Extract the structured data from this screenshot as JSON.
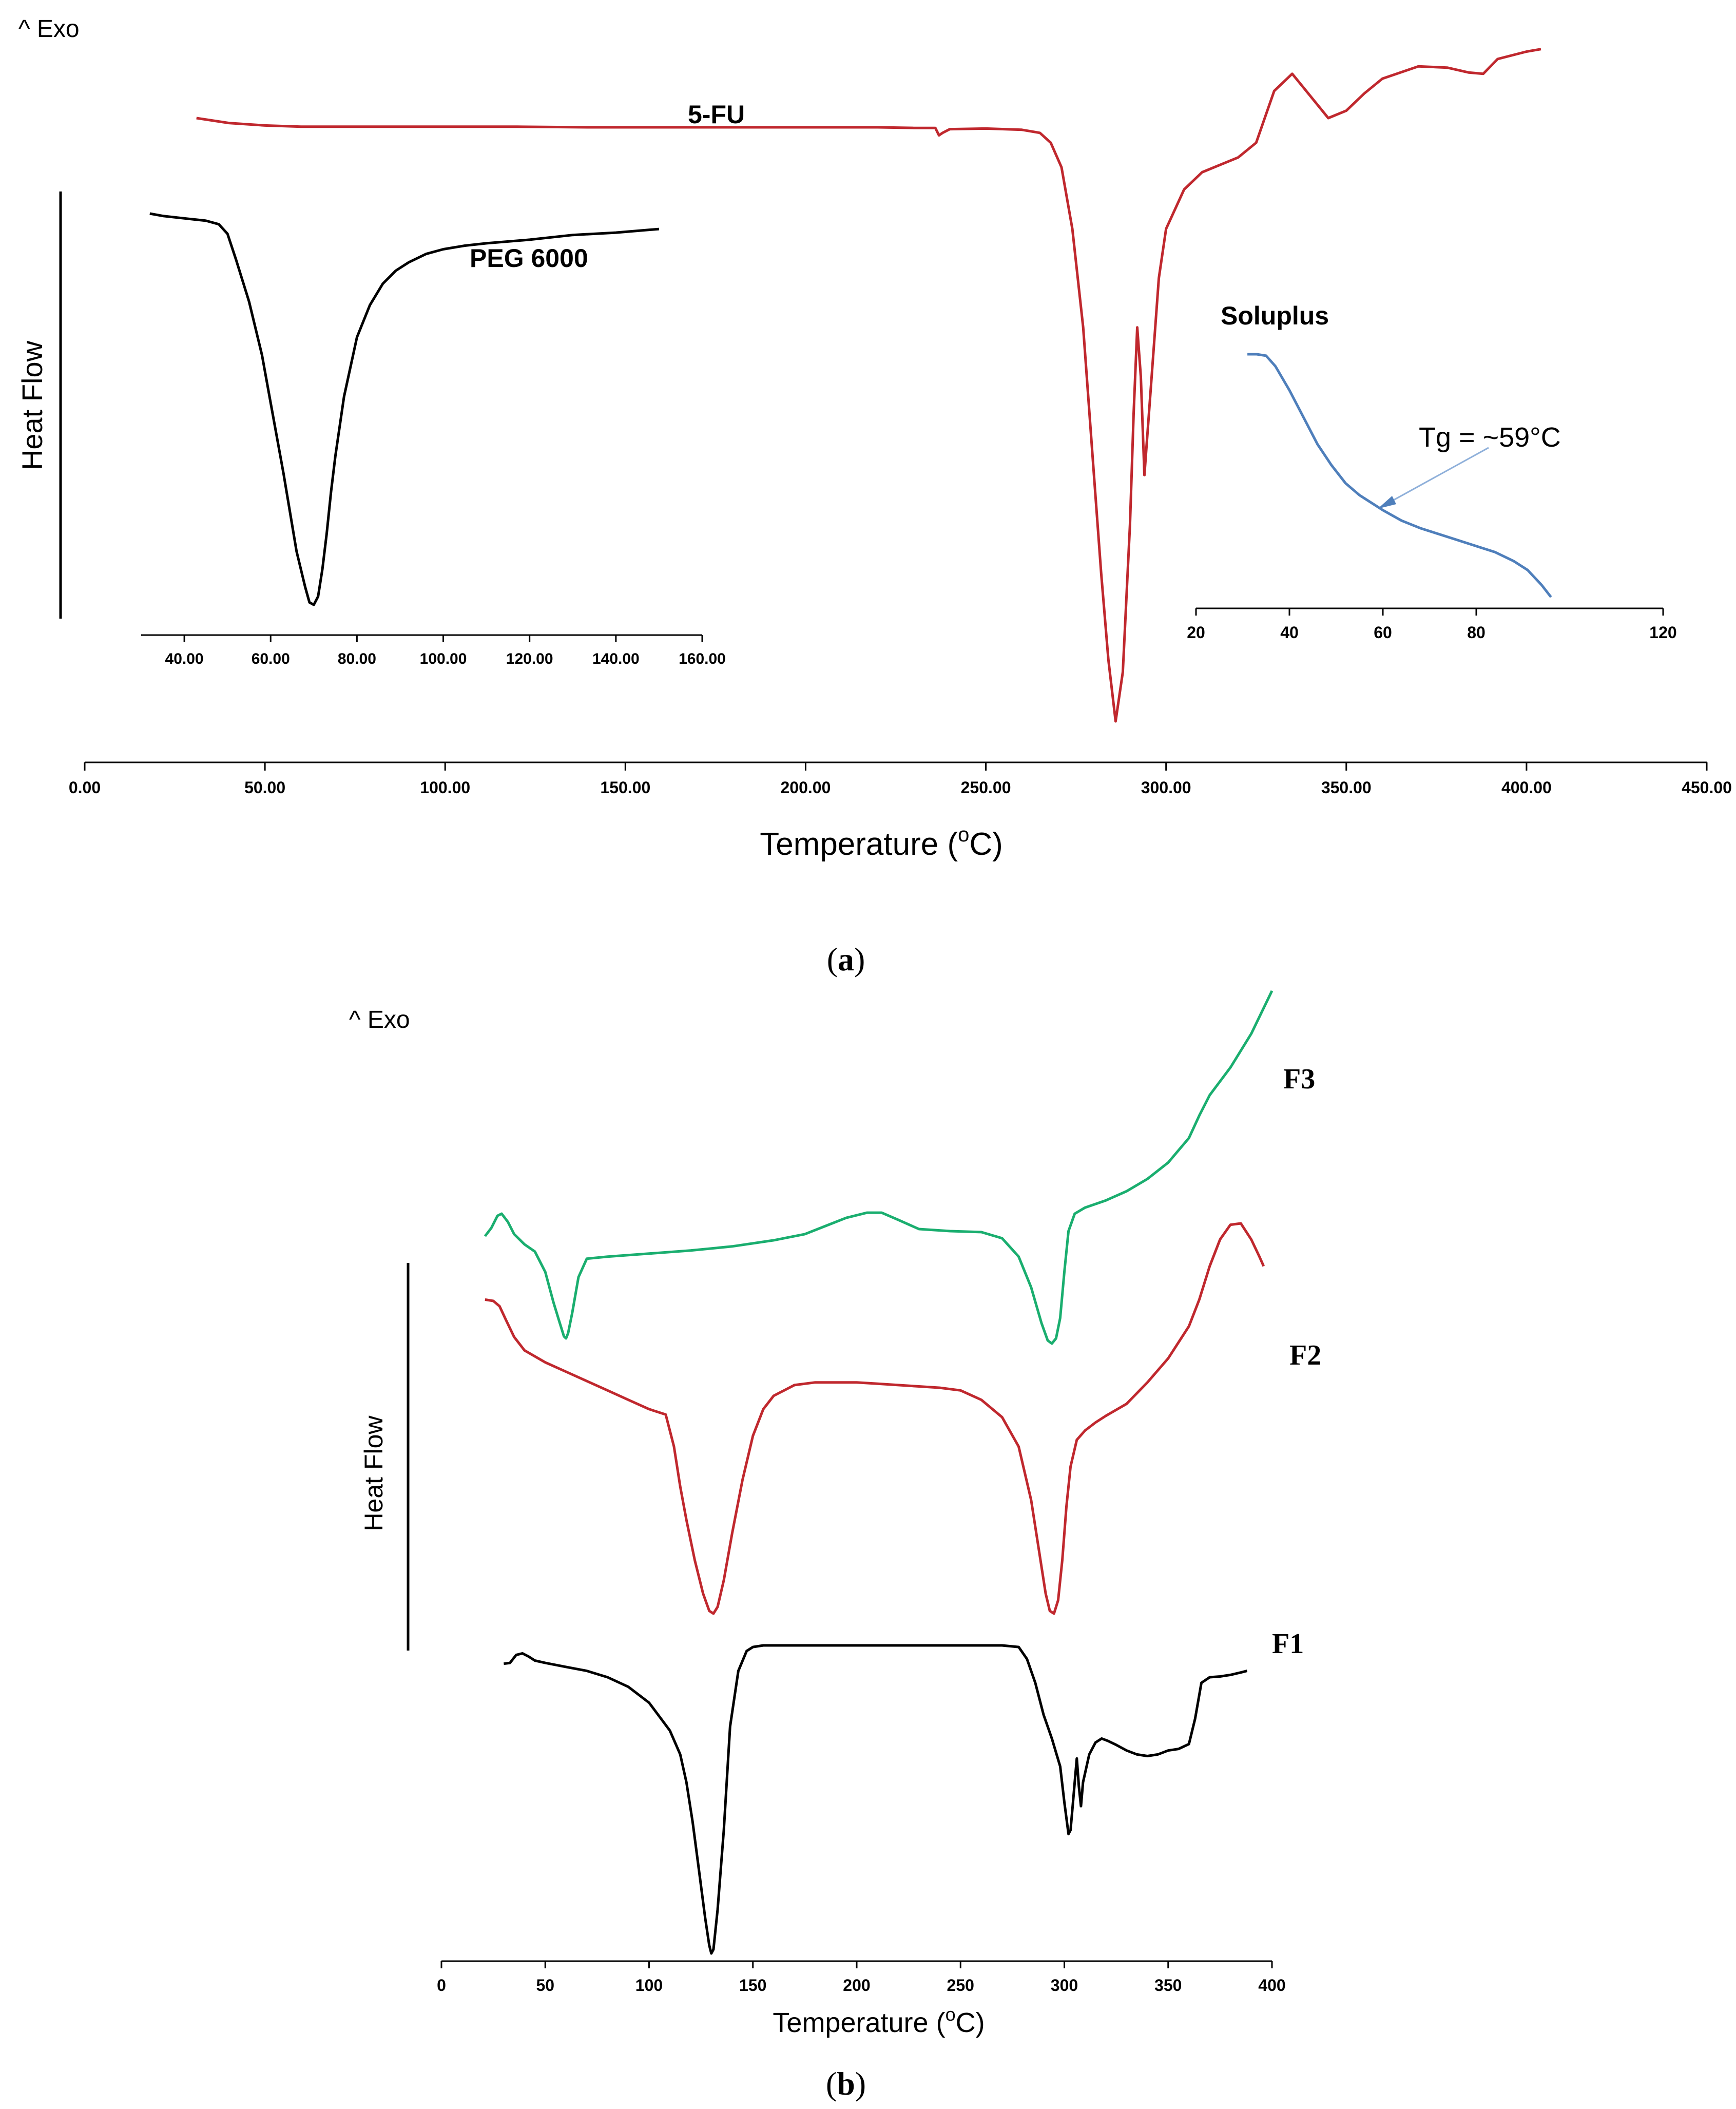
{
  "panel_a": {
    "exo_label": "^ Exo",
    "heat_flow_label": "Heat Flow",
    "caption": "a",
    "main_axis": {
      "xlabel_text": "Temperature (",
      "xlabel_sup": "o",
      "xlabel_unit": "C)",
      "xlim": [
        0,
        450
      ],
      "ticks": [
        "0.00",
        "50.00",
        "100.00",
        "150.00",
        "200.00",
        "250.00",
        "300.00",
        "350.00",
        "400.00",
        "450.00"
      ]
    },
    "peg_axis": {
      "xlim": [
        30,
        160
      ],
      "ticks": [
        "40.00",
        "60.00",
        "80.00",
        "100.00",
        "120.00",
        "140.00",
        "160.00"
      ]
    },
    "soluplus_axis": {
      "xlim": [
        20,
        120
      ],
      "ticks": [
        "20",
        "40",
        "60",
        "80",
        "120"
      ]
    },
    "annotation": "Tg = ~59°C"
  },
  "panel_b": {
    "exo_label": "^ Exo",
    "heat_flow_label": "Heat Flow",
    "caption": "b",
    "axis": {
      "xlabel_text": "Temperature (",
      "xlabel_sup": "o",
      "xlabel_unit": "C)",
      "xlim": [
        0,
        400
      ],
      "ticks": [
        "0",
        "50",
        "100",
        "150",
        "200",
        "250",
        "300",
        "350",
        "400"
      ]
    }
  },
  "chart_data": [
    {
      "type": "line",
      "title": "",
      "xlabel": "Temperature (°C)",
      "ylabel": "Heat Flow",
      "xlim": [
        0,
        450
      ],
      "series": [
        {
          "name": "5-FU",
          "color": "#c0282e",
          "x": [
            31,
            40,
            50,
            60,
            80,
            100,
            120,
            140,
            160,
            180,
            200,
            220,
            230,
            236,
            237,
            238,
            240,
            250,
            260,
            265,
            268,
            271,
            274,
            277,
            280,
            282,
            284,
            286,
            288,
            290,
            291,
            292,
            293,
            294,
            296,
            298,
            300,
            305,
            310,
            315,
            320,
            325,
            330,
            335,
            340,
            345,
            350,
            355,
            360,
            370,
            378,
            384,
            388,
            392,
            400,
            404
          ],
          "y": [
            -1.0,
            -1.4,
            -1.6,
            -1.7,
            -1.7,
            -1.7,
            -1.7,
            -1.75,
            -1.75,
            -1.75,
            -1.75,
            -1.75,
            -1.8,
            -1.8,
            -2.4,
            -2.2,
            -1.9,
            -1.85,
            -1.95,
            -2.2,
            -3.0,
            -5.0,
            -10.0,
            -18.0,
            -30.0,
            -38.0,
            -45.0,
            -50.0,
            -46.0,
            -34.0,
            -25.0,
            -18.0,
            -22.0,
            -30.0,
            -22.0,
            -14.0,
            -10.0,
            -6.8,
            -5.4,
            -4.8,
            -4.2,
            -3.0,
            1.2,
            2.6,
            0.8,
            -1.0,
            -0.4,
            1.0,
            2.2,
            3.2,
            3.1,
            2.7,
            2.6,
            3.8,
            4.4,
            4.6
          ]
        }
      ]
    },
    {
      "type": "line",
      "title": "PEG 6000",
      "xlabel": "",
      "ylabel": "",
      "xlim": [
        30,
        160
      ],
      "series": [
        {
          "name": "PEG 6000",
          "color": "#000000",
          "x": [
            32,
            35,
            40,
            45,
            48,
            50,
            52,
            55,
            58,
            60,
            63,
            66,
            68,
            69,
            70,
            71,
            72,
            73,
            74,
            75,
            77,
            80,
            83,
            86,
            89,
            92,
            96,
            100,
            105,
            110,
            120,
            130,
            140,
            150
          ],
          "y": [
            1.9,
            1.7,
            1.5,
            1.3,
            1.0,
            0.2,
            -2.0,
            -5.5,
            -10.0,
            -14.0,
            -20.0,
            -26.5,
            -29.5,
            -30.8,
            -31.0,
            -30.3,
            -28.0,
            -25.0,
            -21.5,
            -18.5,
            -13.5,
            -8.5,
            -5.8,
            -4.0,
            -2.9,
            -2.2,
            -1.5,
            -1.1,
            -0.8,
            -0.6,
            -0.3,
            0.1,
            0.3,
            0.6
          ]
        }
      ]
    },
    {
      "type": "line",
      "title": "Soluplus",
      "xlabel": "",
      "ylabel": "",
      "xlim": [
        20,
        120
      ],
      "series": [
        {
          "name": "Soluplus",
          "color": "#4f7fbb",
          "x": [
            31,
            33,
            35,
            37,
            40,
            43,
            46,
            49,
            52,
            55,
            58,
            60,
            64,
            68,
            72,
            76,
            80,
            84,
            88,
            91,
            94,
            96
          ],
          "y": [
            0.0,
            0.0,
            -0.05,
            -0.4,
            -1.2,
            -2.1,
            -3.0,
            -3.7,
            -4.3,
            -4.7,
            -5.0,
            -5.2,
            -5.55,
            -5.8,
            -6.0,
            -6.2,
            -6.4,
            -6.6,
            -6.9,
            -7.2,
            -7.7,
            -8.1
          ]
        }
      ],
      "annotations": [
        {
          "text": "Tg = ~59°C",
          "x": 59
        }
      ]
    },
    {
      "type": "line",
      "title": "",
      "xlabel": "Temperature (°C)",
      "ylabel": "Heat Flow",
      "xlim": [
        0,
        400
      ],
      "series": [
        {
          "name": "F3",
          "color": "#1aae6f",
          "x": [
            21,
            24,
            27,
            29,
            32,
            35,
            40,
            45,
            50,
            54,
            57,
            59,
            60,
            61,
            63,
            66,
            70,
            80,
            100,
            120,
            140,
            160,
            175,
            185,
            195,
            205,
            212,
            220,
            230,
            245,
            260,
            270,
            278,
            284,
            289,
            292,
            294,
            296,
            298,
            300,
            302,
            305,
            310,
            320,
            330,
            340,
            350,
            360,
            365,
            370,
            380,
            390,
            400
          ],
          "y": [
            -4.0,
            -3.2,
            -2.0,
            -1.8,
            -2.6,
            -3.8,
            -4.8,
            -5.5,
            -7.5,
            -10.5,
            -12.5,
            -13.8,
            -14.0,
            -13.5,
            -11.5,
            -8.0,
            -6.2,
            -6.0,
            -5.7,
            -5.4,
            -5.0,
            -4.4,
            -3.8,
            -3.0,
            -2.2,
            -1.7,
            -1.7,
            -2.4,
            -3.3,
            -3.5,
            -3.6,
            -4.2,
            -6.0,
            -9.0,
            -12.5,
            -14.2,
            -14.5,
            -14.0,
            -12.0,
            -7.5,
            -3.5,
            -1.8,
            -1.2,
            -0.5,
            0.4,
            1.6,
            3.2,
            5.6,
            7.8,
            9.8,
            12.5,
            15.8,
            20.0
          ]
        },
        {
          "name": "F2",
          "color": "#c0282e",
          "x": [
            21,
            25,
            28,
            31,
            35,
            40,
            50,
            60,
            70,
            80,
            90,
            100,
            108,
            112,
            115,
            118,
            122,
            126,
            129,
            131,
            133,
            136,
            140,
            145,
            150,
            155,
            160,
            170,
            180,
            190,
            200,
            210,
            220,
            230,
            240,
            250,
            260,
            270,
            278,
            284,
            288,
            291,
            293,
            295,
            297,
            299,
            301,
            303,
            306,
            310,
            315,
            320,
            330,
            340,
            350,
            360,
            365,
            370,
            375,
            380,
            385,
            390,
            394,
            396
          ],
          "y": [
            7.0,
            6.9,
            6.5,
            5.5,
            4.2,
            3.2,
            2.3,
            1.6,
            0.9,
            0.2,
            -0.5,
            -1.2,
            -1.6,
            -4.0,
            -7.0,
            -9.5,
            -12.5,
            -15.0,
            -16.3,
            -16.5,
            -16.0,
            -14.0,
            -10.5,
            -6.5,
            -3.2,
            -1.2,
            -0.2,
            0.6,
            0.8,
            0.8,
            0.8,
            0.7,
            0.6,
            0.5,
            0.4,
            0.2,
            -0.5,
            -1.8,
            -4.0,
            -8.0,
            -12.0,
            -15.0,
            -16.3,
            -16.5,
            -15.5,
            -12.5,
            -8.5,
            -5.5,
            -3.5,
            -2.8,
            -2.2,
            -1.7,
            -0.8,
            0.8,
            2.6,
            5.0,
            7.0,
            9.5,
            11.5,
            12.6,
            12.7,
            11.5,
            10.2,
            9.5
          ]
        },
        {
          "name": "F1",
          "color": "#000000",
          "x": [
            30,
            33,
            36,
            39,
            42,
            45,
            50,
            60,
            70,
            80,
            90,
            100,
            110,
            115,
            118,
            121,
            124,
            127,
            129,
            130,
            131,
            133,
            136,
            139,
            143,
            147,
            150,
            155,
            165,
            200,
            240,
            270,
            278,
            282,
            286,
            290,
            294,
            298,
            300,
            302,
            303,
            304,
            305,
            306,
            307,
            308,
            309,
            312,
            315,
            318,
            321,
            325,
            330,
            335,
            340,
            345,
            350,
            355,
            360,
            363,
            366,
            370,
            375,
            380,
            385,
            388
          ],
          "y": [
            2.9,
            3.0,
            4.0,
            4.2,
            3.8,
            3.3,
            3.0,
            2.5,
            2.0,
            1.2,
            0.0,
            -2.0,
            -5.5,
            -8.5,
            -12.0,
            -17.0,
            -23.0,
            -29.0,
            -32.5,
            -33.5,
            -33.0,
            -28.0,
            -18.0,
            -5.0,
            2.0,
            4.5,
            5.0,
            5.2,
            5.2,
            5.2,
            5.2,
            5.2,
            5.0,
            3.5,
            0.5,
            -3.5,
            -6.5,
            -10.0,
            -14.5,
            -18.5,
            -18.0,
            -15.0,
            -12.0,
            -9.0,
            -12.5,
            -15.0,
            -12.0,
            -8.5,
            -7.0,
            -6.5,
            -6.8,
            -7.3,
            -8.0,
            -8.5,
            -8.7,
            -8.5,
            -8.0,
            -7.8,
            -7.2,
            -4.0,
            0.5,
            1.2,
            1.3,
            1.5,
            1.8,
            2.0
          ]
        }
      ]
    }
  ]
}
